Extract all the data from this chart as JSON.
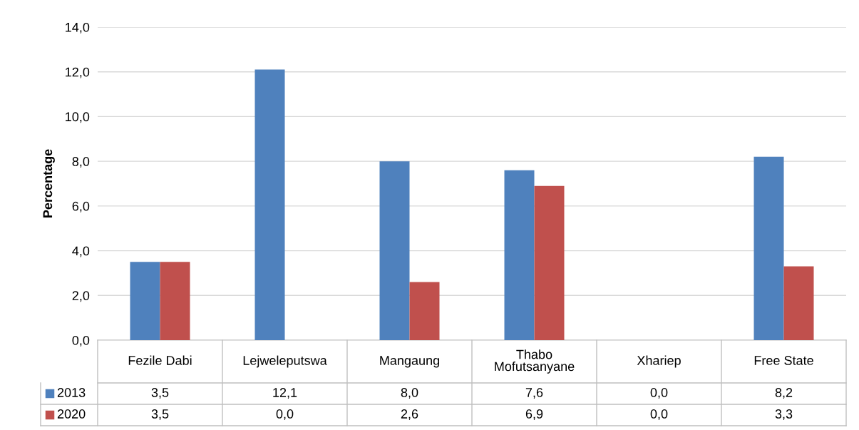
{
  "chart_data": {
    "type": "bar",
    "ylabel": "Percentage",
    "categories": [
      "Fezile Dabi",
      "Lejweleputswa",
      "Mangaung",
      "Thabo\nMofutsanyane",
      "Xhariep",
      "Free State"
    ],
    "series": [
      {
        "name": "2013",
        "color": "#4f81bd",
        "values": [
          3.5,
          12.1,
          8.0,
          7.6,
          0.0,
          8.2
        ],
        "value_labels": [
          "3,5",
          "12,1",
          "8,0",
          "7,6",
          "0,0",
          "8,2"
        ]
      },
      {
        "name": "2020",
        "color": "#c0504d",
        "values": [
          3.5,
          0.0,
          2.6,
          6.9,
          0.0,
          3.3
        ],
        "value_labels": [
          "3,5",
          "0,0",
          "2,6",
          "6,9",
          "0,0",
          "3,3"
        ]
      }
    ],
    "ylim": [
      0,
      14
    ],
    "yticks": [
      {
        "value": 0,
        "label": "0,0"
      },
      {
        "value": 2,
        "label": "2,0"
      },
      {
        "value": 4,
        "label": "4,0"
      },
      {
        "value": 6,
        "label": "6,0"
      },
      {
        "value": 8,
        "label": "8,0"
      },
      {
        "value": 10,
        "label": "10,0"
      },
      {
        "value": 12,
        "label": "12,0"
      },
      {
        "value": 14,
        "label": "14,0"
      }
    ],
    "grid": "y",
    "legend": "bottom left"
  }
}
